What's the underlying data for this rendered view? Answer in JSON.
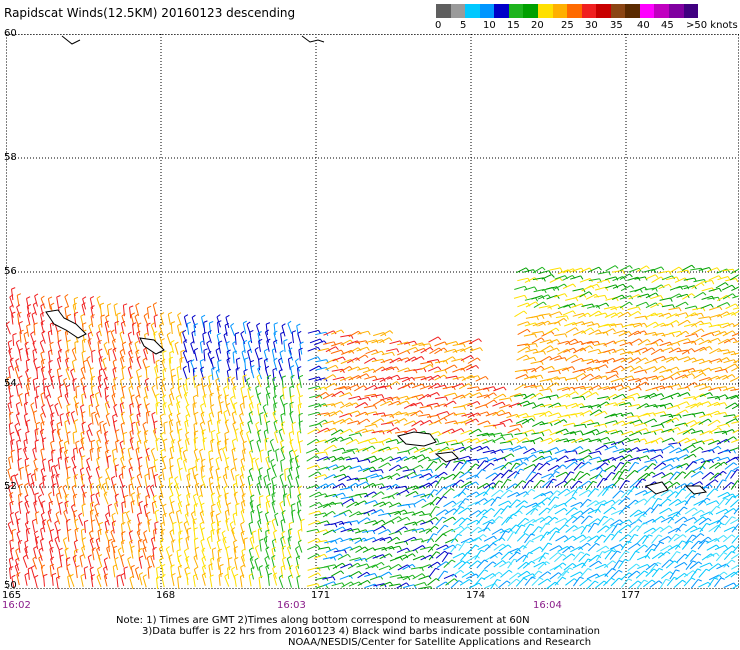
{
  "title": "Rapidscat Winds(12.5KM) 20160123 descending",
  "legend": {
    "colors": [
      "#5f5f5f",
      "#9a9a9a",
      "#00c8ff",
      "#0096ff",
      "#0000c8",
      "#1eb41e",
      "#00a000",
      "#ffe000",
      "#ffb000",
      "#ff6a00",
      "#f02020",
      "#c80000",
      "#8b4513",
      "#5a2a00",
      "#ff00ff",
      "#c000c0",
      "#8000a0",
      "#400080"
    ],
    "labels": [
      "0",
      "5",
      "10",
      "15",
      "20",
      "25",
      "30",
      "35",
      "40",
      "45",
      ">50 knots"
    ]
  },
  "map": {
    "lat_labels": [
      "60",
      "58",
      "56",
      "54",
      "52",
      "50"
    ],
    "lon_labels": [
      "165",
      "168",
      "171",
      "174",
      "177"
    ],
    "time_labels": [
      "16:02",
      "16:03",
      "16:04"
    ]
  },
  "notes": [
    "Note: 1) Times are GMT 2)Times along bottom correspond to measurement at 60N",
    "3)Data buffer is 22 hrs from 20160123 4) Black wind barbs indicate possible contamination",
    "NOAA/NESDIS/Center for Satellite Applications and Research"
  ]
}
